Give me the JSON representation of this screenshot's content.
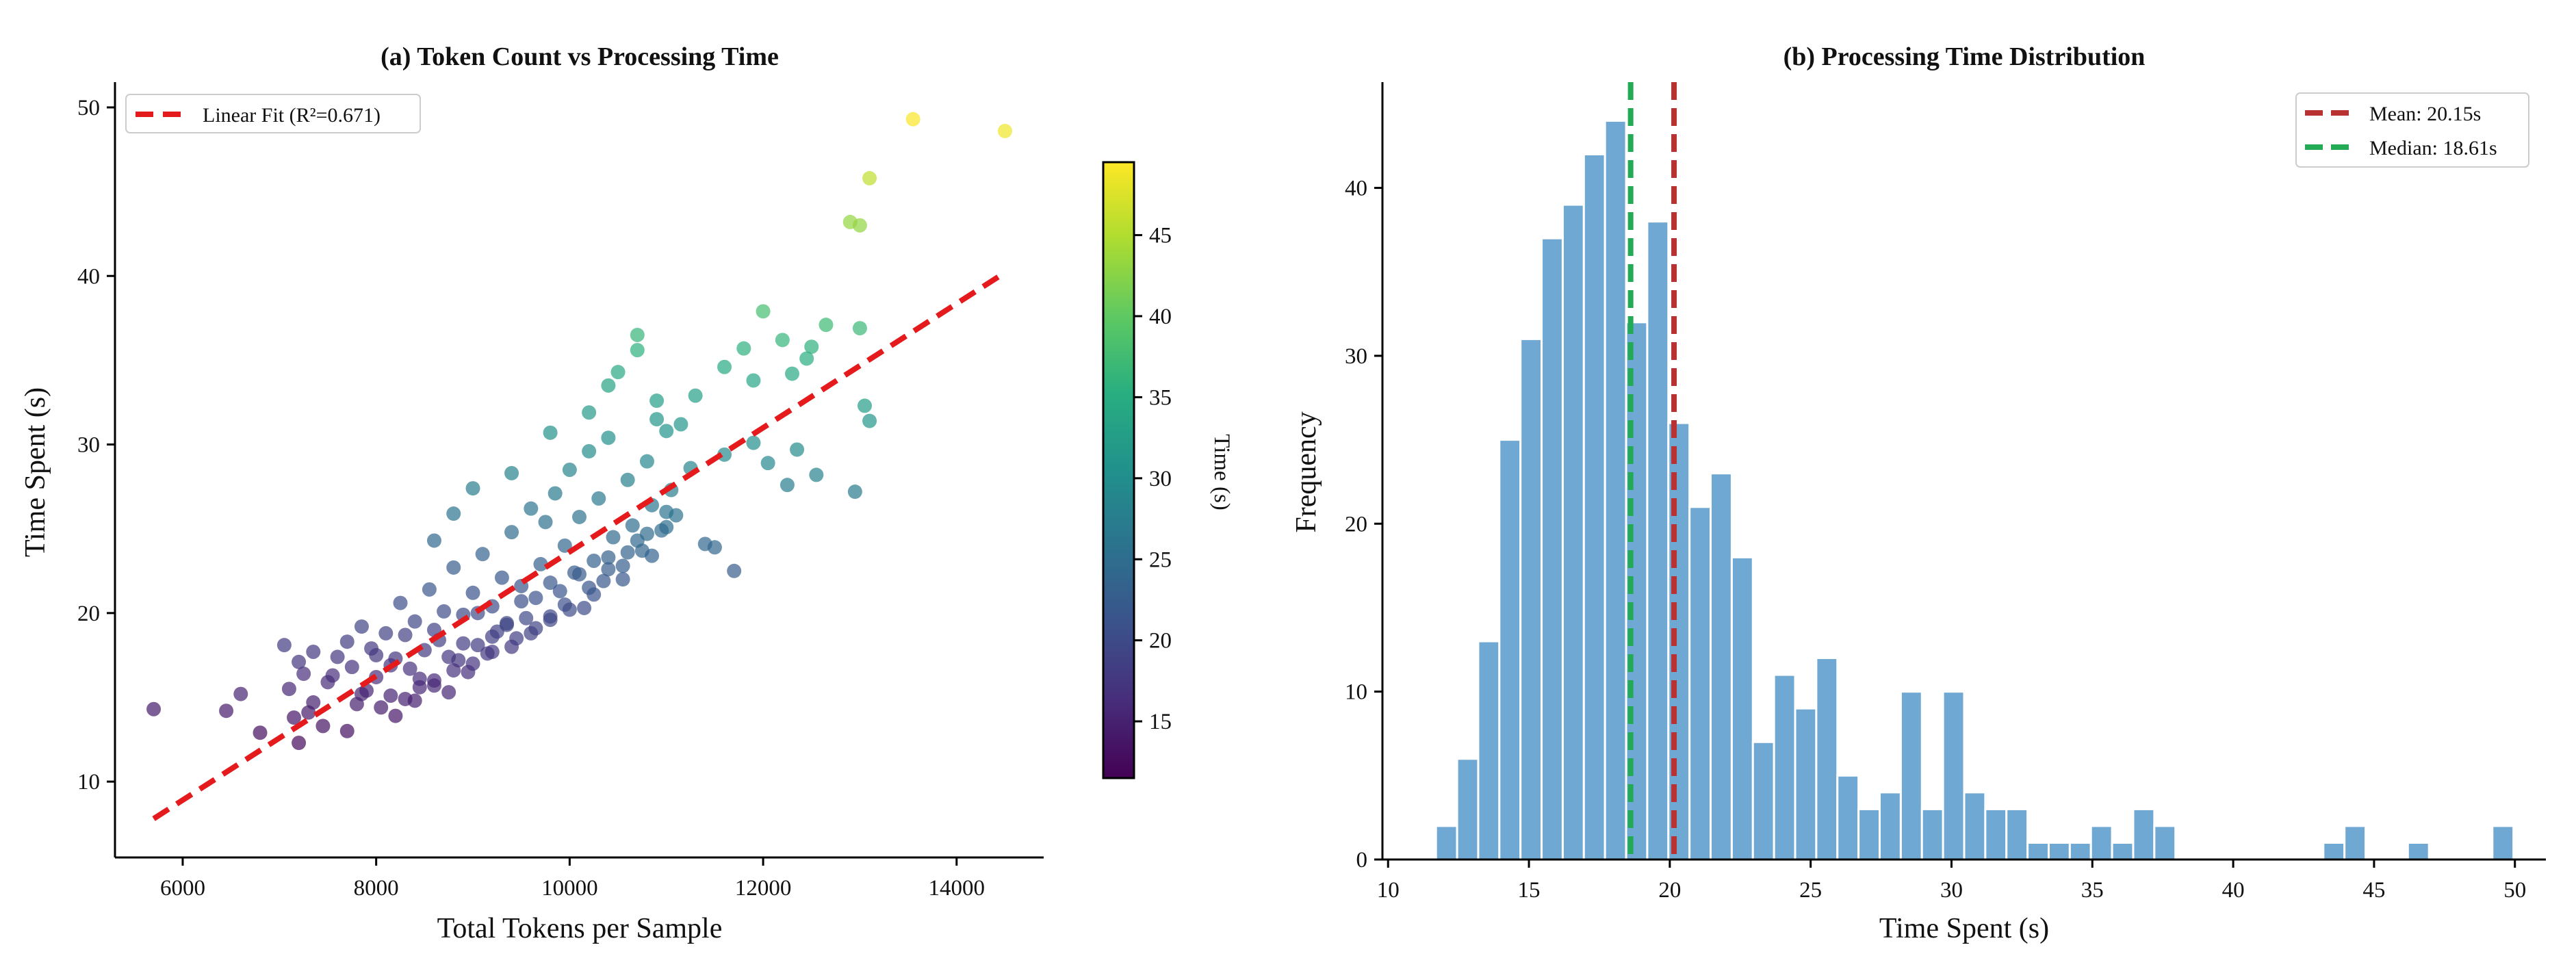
{
  "colors": {
    "fit_line": "#e41a1c",
    "hist_bar": "#6fa8d2",
    "mean_line": "#b83232",
    "median_line": "#22aa55",
    "colormap": "viridis"
  },
  "chart_data": [
    {
      "type": "scatter",
      "title": "(a) Token Count vs Processing Time",
      "xlabel": "Total Tokens per Sample",
      "ylabel": "Time Spent (s)",
      "xlim": [
        5300,
        14900
      ],
      "ylim": [
        5.5,
        51.5
      ],
      "xticks": [
        "6000",
        "8000",
        "10000",
        "12000",
        "14000"
      ],
      "yticks": [
        "10",
        "20",
        "30",
        "40",
        "50"
      ],
      "grid": false,
      "legend": {
        "placement": "top-left",
        "entries": [
          "Linear Fit (R²=0.671)"
        ]
      },
      "fit_line": {
        "name": "Linear Fit (R²=0.671)",
        "x": [
          5700,
          14500
        ],
        "y": [
          7.8,
          40.2
        ]
      },
      "colorbar": {
        "label": "Time (s)",
        "range": [
          11.5,
          49.5
        ],
        "ticks": [
          "15",
          "20",
          "25",
          "30",
          "35",
          "40",
          "45"
        ]
      },
      "points": {
        "x": [
          5700,
          6450,
          6600,
          6800,
          7050,
          7100,
          7150,
          7200,
          7250,
          7300,
          7350,
          7450,
          7500,
          7600,
          7700,
          7750,
          7800,
          7850,
          7900,
          7950,
          8000,
          8050,
          8100,
          8150,
          8200,
          8250,
          8300,
          8350,
          8400,
          8450,
          8500,
          8550,
          8600,
          8650,
          8700,
          8750,
          8800,
          8850,
          8900,
          8950,
          9000,
          9050,
          9100,
          9150,
          9200,
          9250,
          9300,
          9350,
          9400,
          9450,
          9500,
          9550,
          9600,
          9650,
          9700,
          9750,
          9800,
          9850,
          9900,
          9950,
          10000,
          10050,
          10100,
          10150,
          10200,
          10250,
          10300,
          10350,
          10400,
          10450,
          10500,
          10550,
          10600,
          10650,
          10700,
          10750,
          10800,
          10850,
          10900,
          10950,
          11000,
          11050,
          11100,
          11150,
          11250,
          11400,
          11500,
          11600,
          11700,
          11800,
          11900,
          12000,
          12050,
          12200,
          12250,
          12350,
          12450,
          12550,
          12650,
          12950,
          13000,
          13050,
          13100,
          13550,
          14500,
          7200,
          7350,
          7550,
          7700,
          7850,
          8000,
          8150,
          8300,
          8450,
          8600,
          8750,
          8900,
          9050,
          9200,
          9350,
          9500,
          9650,
          9800,
          9950,
          10100,
          10250,
          10400,
          10550,
          10700,
          10850,
          11000,
          8200,
          8400,
          8600,
          8800,
          9000,
          9200,
          9400,
          9600,
          9800,
          10000,
          10200,
          10400,
          10600,
          10800,
          11000,
          12900,
          13100,
          8600,
          8800,
          9000,
          9400,
          9800,
          10200,
          10400,
          10700,
          10900,
          11300,
          11600,
          11900,
          12300,
          12500,
          13000
        ],
        "y": [
          14.3,
          14.2,
          15.2,
          12.9,
          18.1,
          15.5,
          13.8,
          12.3,
          16.4,
          14.1,
          17.7,
          13.3,
          15.9,
          17.4,
          13.0,
          16.8,
          14.6,
          19.2,
          15.4,
          17.9,
          16.2,
          14.4,
          18.8,
          15.1,
          17.3,
          20.6,
          14.9,
          16.7,
          19.5,
          15.6,
          17.8,
          21.4,
          16.0,
          18.4,
          20.1,
          15.3,
          22.7,
          17.2,
          19.9,
          16.5,
          21.2,
          18.1,
          23.5,
          17.6,
          20.4,
          18.9,
          22.1,
          19.3,
          24.8,
          18.5,
          21.6,
          19.7,
          26.2,
          20.9,
          22.9,
          25.4,
          19.8,
          27.1,
          21.3,
          24.0,
          28.5,
          22.4,
          25.7,
          20.3,
          29.6,
          23.1,
          26.8,
          21.9,
          30.4,
          24.5,
          34.3,
          22.8,
          27.9,
          25.2,
          36.5,
          23.7,
          29.0,
          26.4,
          32.6,
          24.9,
          30.8,
          27.3,
          25.8,
          31.2,
          28.6,
          24.1,
          23.9,
          29.4,
          22.5,
          35.7,
          30.1,
          37.9,
          28.9,
          36.2,
          27.6,
          29.7,
          35.1,
          28.2,
          37.1,
          27.2,
          43.0,
          32.3,
          45.8,
          49.3,
          48.6,
          17.1,
          14.7,
          16.3,
          18.3,
          15.2,
          17.5,
          16.9,
          18.7,
          16.1,
          19.0,
          17.4,
          18.2,
          20.0,
          18.6,
          19.4,
          20.7,
          19.1,
          21.8,
          20.5,
          22.3,
          21.1,
          23.3,
          22.0,
          24.3,
          23.4,
          25.1,
          13.9,
          14.8,
          15.7,
          16.6,
          17.0,
          17.7,
          18.0,
          18.8,
          19.6,
          20.2,
          21.5,
          22.6,
          23.6,
          24.7,
          26.0,
          43.2,
          31.4,
          24.3,
          25.9,
          27.4,
          28.3,
          30.7,
          31.9,
          33.5,
          35.6,
          31.5,
          32.9,
          34.6,
          33.8,
          34.2,
          35.8,
          36.9
        ]
      }
    },
    {
      "type": "bar",
      "title": "(b) Processing Time Distribution",
      "xlabel": "Time Spent (s)",
      "ylabel": "Frequency",
      "xlim": [
        9.8,
        51.1
      ],
      "ylim": [
        0,
        46.3
      ],
      "xticks": [
        "10",
        "15",
        "20",
        "25",
        "30",
        "35",
        "40",
        "45",
        "50"
      ],
      "yticks": [
        "0",
        "10",
        "20",
        "30",
        "40"
      ],
      "grid": false,
      "bin_start": 11.7,
      "bin_width": 0.75,
      "counts": [
        2,
        6,
        13,
        25,
        31,
        37,
        39,
        42,
        44,
        32,
        38,
        26,
        21,
        23,
        18,
        7,
        11,
        9,
        12,
        5,
        3,
        4,
        10,
        3,
        10,
        4,
        3,
        3,
        1,
        1,
        1,
        2,
        1,
        3,
        2,
        0,
        0,
        0,
        0,
        0,
        0,
        0,
        1,
        2,
        0,
        0,
        1,
        0,
        0,
        0,
        2
      ],
      "mean": 20.15,
      "median": 18.61,
      "legend": {
        "placement": "top-right",
        "entries": [
          "Mean: 20.15s",
          "Median: 18.61s"
        ]
      }
    }
  ]
}
